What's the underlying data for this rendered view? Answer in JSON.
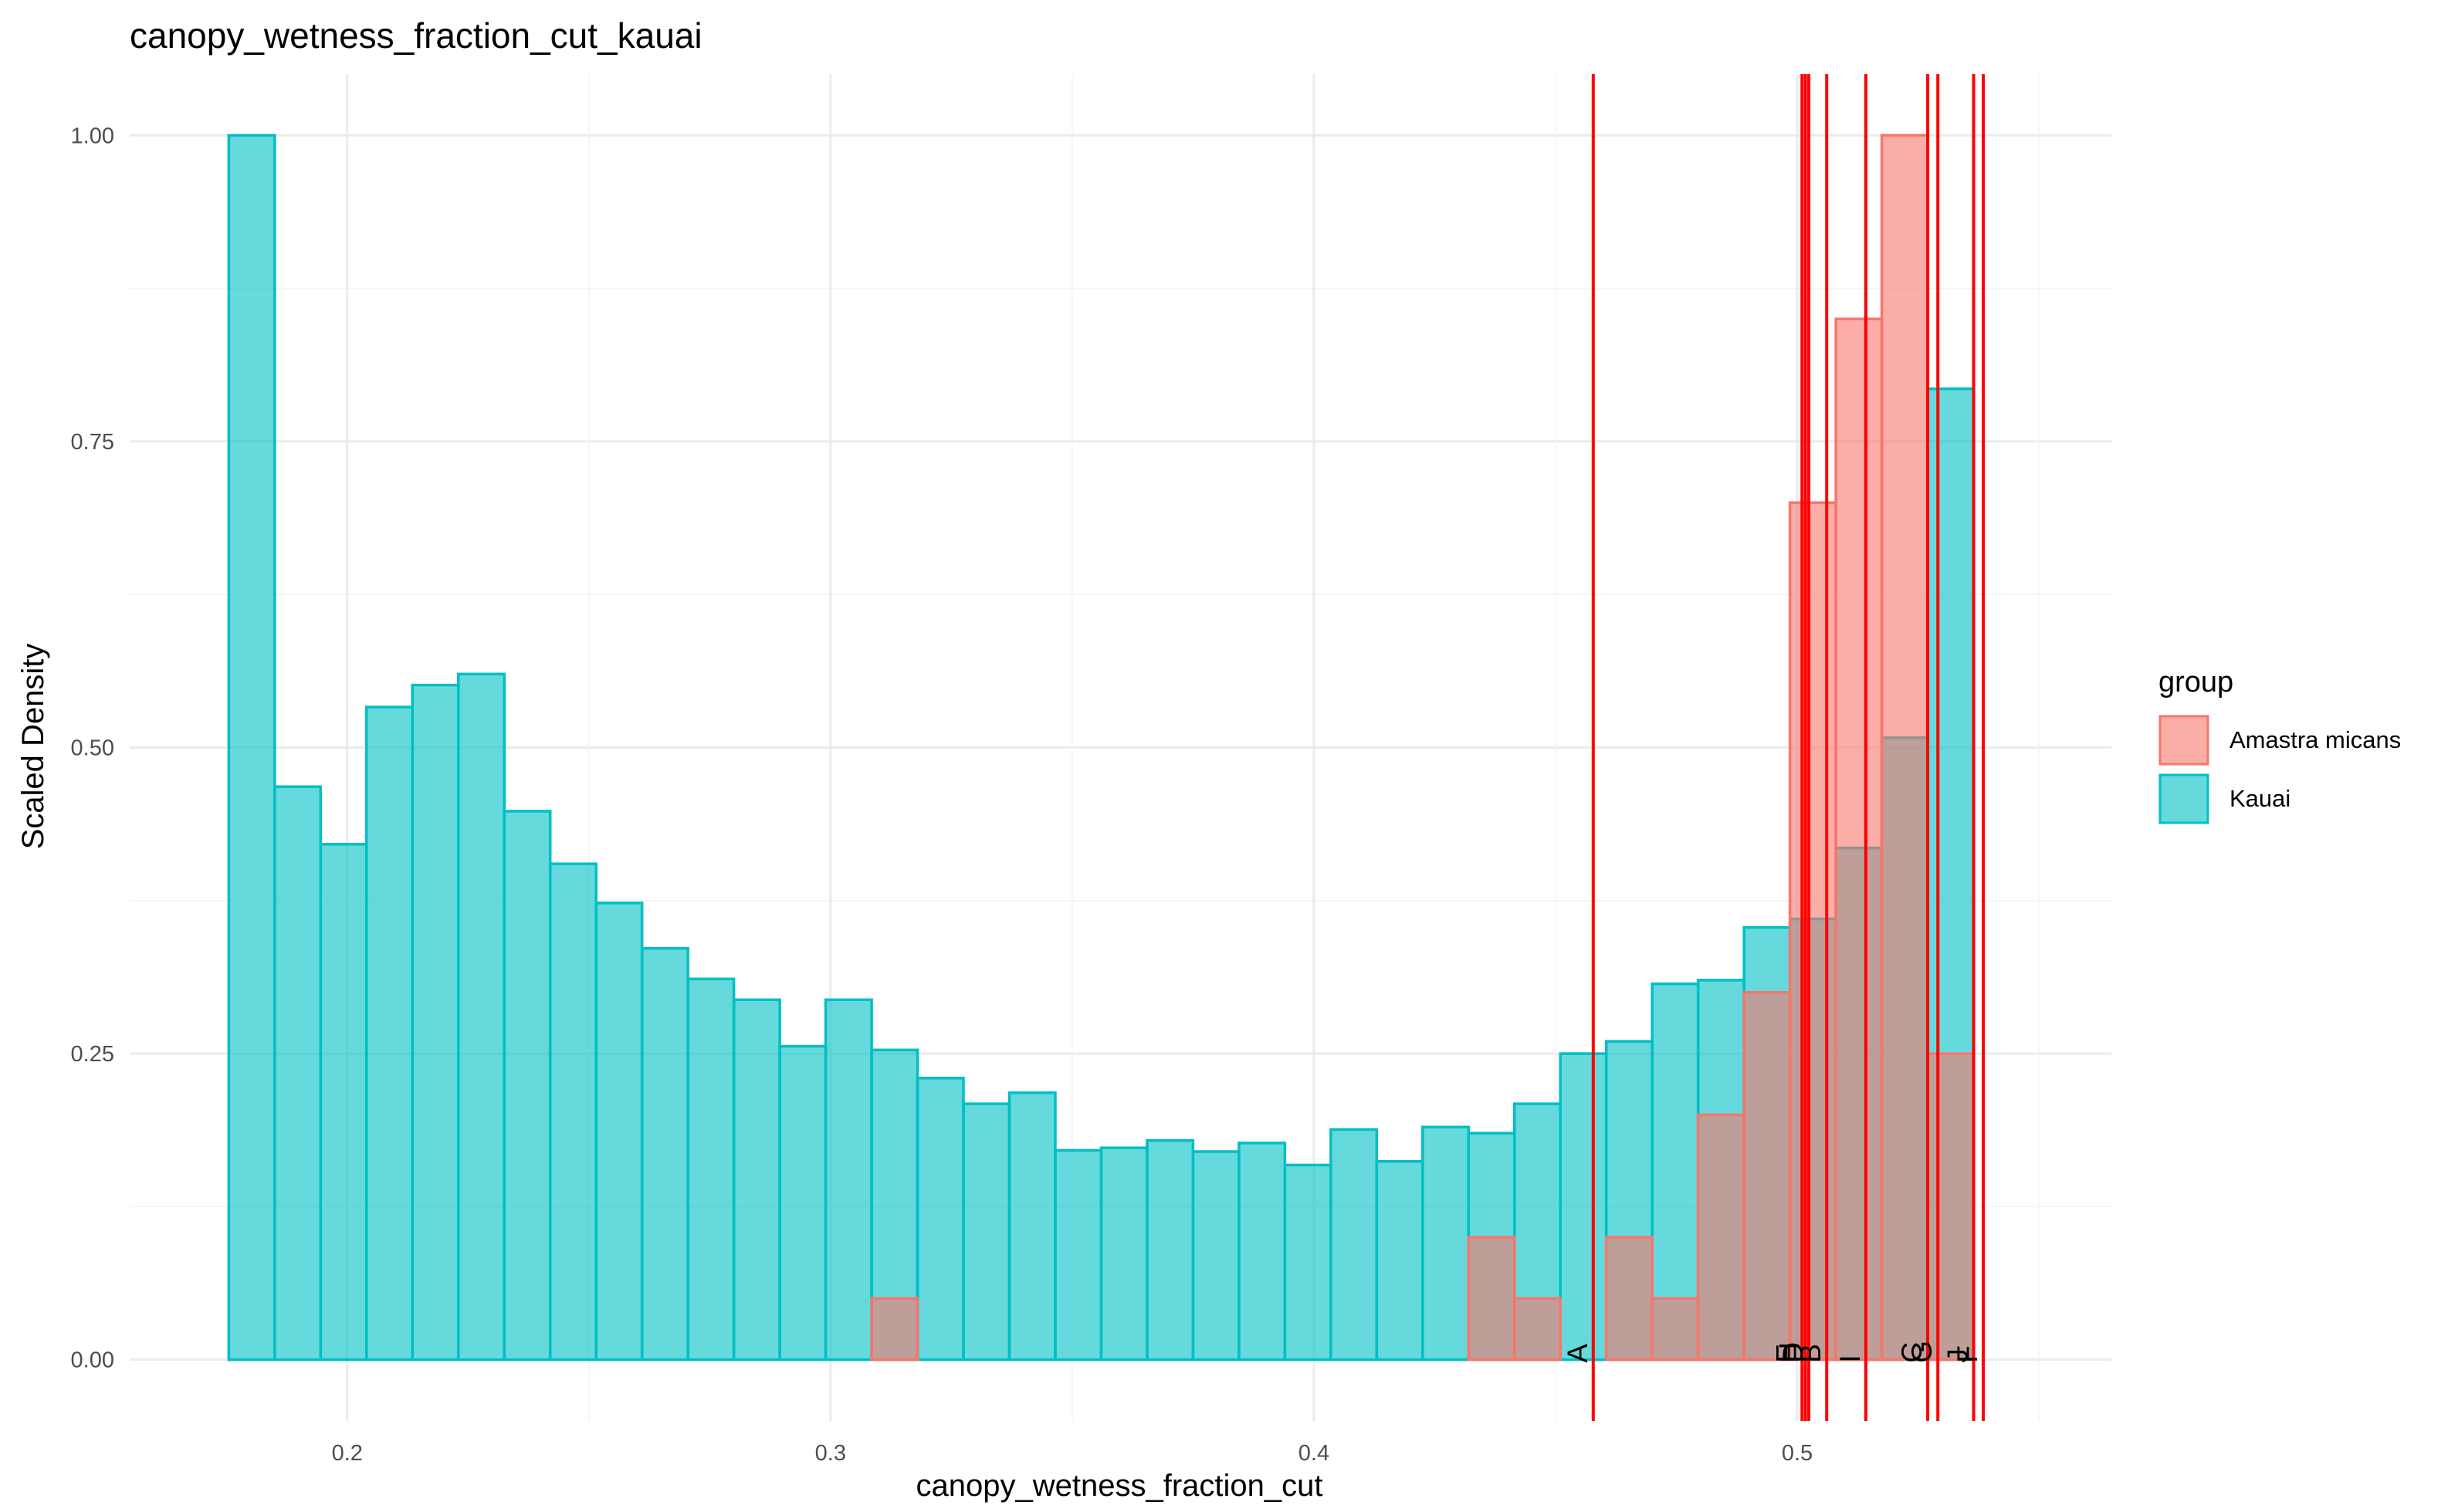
{
  "chart_data": {
    "type": "bar",
    "title": "canopy_wetness_fraction_cut_kauai",
    "xlabel": "canopy_wetness_fraction_cut",
    "ylabel": "Scaled Density",
    "xlim": [
      0.155,
      0.565
    ],
    "ylim": [
      -0.05,
      1.05
    ],
    "x_ticks": [
      0.2,
      0.3,
      0.4,
      0.5
    ],
    "x_tick_labels": [
      "0.2",
      "0.3",
      "0.4",
      "0.5"
    ],
    "y_ticks": [
      0.0,
      0.25,
      0.5,
      0.75,
      1.0
    ],
    "y_tick_labels": [
      "0.00",
      "0.25",
      "0.50",
      "0.75",
      "1.00"
    ],
    "grid": true,
    "legend": {
      "title": "group",
      "position": "right",
      "entries": [
        {
          "label": "Amastra micans",
          "fill": "#F8766D",
          "stroke": "#F8766D"
        },
        {
          "label": "Kauai",
          "fill": "#00BFC4",
          "stroke": "#00BFC4"
        }
      ]
    },
    "bin_width": 0.0095,
    "series": [
      {
        "name": "Kauai",
        "color": "#00BFC4",
        "bins": [
          {
            "x0": 0.1755,
            "value": 1.0
          },
          {
            "x0": 0.185,
            "value": 0.468
          },
          {
            "x0": 0.1945,
            "value": 0.421
          },
          {
            "x0": 0.204,
            "value": 0.533
          },
          {
            "x0": 0.2135,
            "value": 0.551
          },
          {
            "x0": 0.223,
            "value": 0.56
          },
          {
            "x0": 0.2325,
            "value": 0.448
          },
          {
            "x0": 0.242,
            "value": 0.405
          },
          {
            "x0": 0.2515,
            "value": 0.373
          },
          {
            "x0": 0.261,
            "value": 0.336
          },
          {
            "x0": 0.2705,
            "value": 0.311
          },
          {
            "x0": 0.28,
            "value": 0.294
          },
          {
            "x0": 0.2895,
            "value": 0.256
          },
          {
            "x0": 0.299,
            "value": 0.294
          },
          {
            "x0": 0.3085,
            "value": 0.253
          },
          {
            "x0": 0.318,
            "value": 0.23
          },
          {
            "x0": 0.3275,
            "value": 0.209
          },
          {
            "x0": 0.337,
            "value": 0.218
          },
          {
            "x0": 0.3465,
            "value": 0.171
          },
          {
            "x0": 0.356,
            "value": 0.173
          },
          {
            "x0": 0.3655,
            "value": 0.179
          },
          {
            "x0": 0.375,
            "value": 0.17
          },
          {
            "x0": 0.3845,
            "value": 0.177
          },
          {
            "x0": 0.394,
            "value": 0.159
          },
          {
            "x0": 0.4035,
            "value": 0.188
          },
          {
            "x0": 0.413,
            "value": 0.162
          },
          {
            "x0": 0.4225,
            "value": 0.19
          },
          {
            "x0": 0.432,
            "value": 0.185
          },
          {
            "x0": 0.4415,
            "value": 0.209
          },
          {
            "x0": 0.451,
            "value": 0.25
          },
          {
            "x0": 0.4605,
            "value": 0.26
          },
          {
            "x0": 0.47,
            "value": 0.307
          },
          {
            "x0": 0.4795,
            "value": 0.31
          },
          {
            "x0": 0.489,
            "value": 0.353
          },
          {
            "x0": 0.4985,
            "value": 0.36
          },
          {
            "x0": 0.508,
            "value": 0.418
          },
          {
            "x0": 0.5175,
            "value": 0.508
          },
          {
            "x0": 0.527,
            "value": 0.793
          }
        ]
      },
      {
        "name": "Amastra micans",
        "color": "#F8766D",
        "bins": [
          {
            "x0": 0.3085,
            "value": 0.05
          },
          {
            "x0": 0.432,
            "value": 0.1
          },
          {
            "x0": 0.4415,
            "value": 0.05
          },
          {
            "x0": 0.4605,
            "value": 0.1
          },
          {
            "x0": 0.47,
            "value": 0.05
          },
          {
            "x0": 0.4795,
            "value": 0.2
          },
          {
            "x0": 0.489,
            "value": 0.3
          },
          {
            "x0": 0.4985,
            "value": 0.7
          },
          {
            "x0": 0.508,
            "value": 0.85
          },
          {
            "x0": 0.5175,
            "value": 1.0
          },
          {
            "x0": 0.527,
            "value": 0.25
          }
        ]
      }
    ],
    "vlines": {
      "color": "#FF0000",
      "lines": [
        {
          "label": "A",
          "x": 0.4578
        },
        {
          "label": "E",
          "x": 0.501
        },
        {
          "label": "H",
          "x": 0.5017
        },
        {
          "label": "D",
          "x": 0.5024
        },
        {
          "label": "B",
          "x": 0.5061
        },
        {
          "label": "I",
          "x": 0.5142
        },
        {
          "label": "C",
          "x": 0.527
        },
        {
          "label": "G",
          "x": 0.5291
        },
        {
          "label": "J",
          "x": 0.5365
        },
        {
          "label": "F",
          "x": 0.5385
        }
      ]
    }
  }
}
